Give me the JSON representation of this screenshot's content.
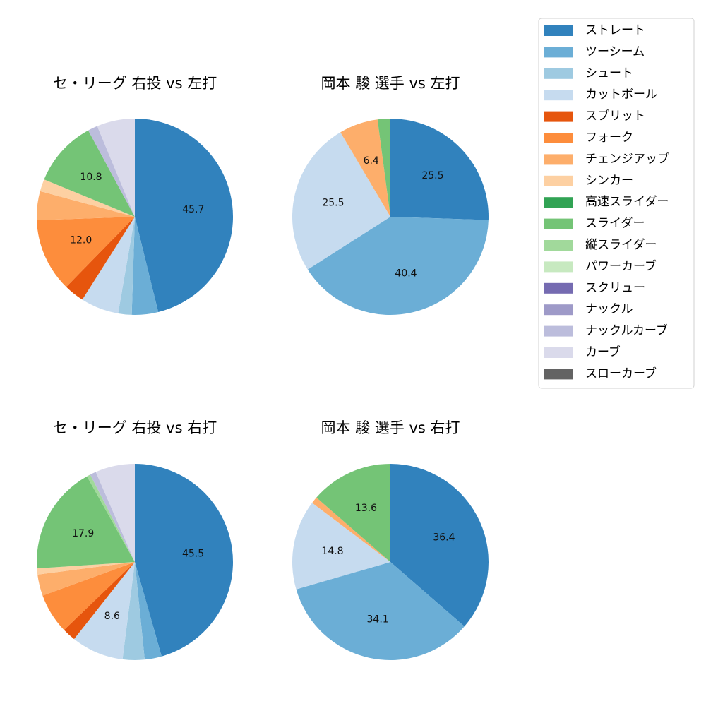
{
  "legend": [
    {
      "label": "ストレート",
      "color": "#3182bd"
    },
    {
      "label": "ツーシーム",
      "color": "#6baed6"
    },
    {
      "label": "シュート",
      "color": "#9ecae1"
    },
    {
      "label": "カットボール",
      "color": "#c6dbef"
    },
    {
      "label": "スプリット",
      "color": "#e6550d"
    },
    {
      "label": "フォーク",
      "color": "#fd8d3c"
    },
    {
      "label": "チェンジアップ",
      "color": "#fdae6b"
    },
    {
      "label": "シンカー",
      "color": "#fdd0a2"
    },
    {
      "label": "高速スライダー",
      "color": "#31a354"
    },
    {
      "label": "スライダー",
      "color": "#74c476"
    },
    {
      "label": "縦スライダー",
      "color": "#a1d99b"
    },
    {
      "label": "パワーカーブ",
      "color": "#c7e9c0"
    },
    {
      "label": "スクリュー",
      "color": "#756bb1"
    },
    {
      "label": "ナックル",
      "color": "#9e9ac8"
    },
    {
      "label": "ナックルカーブ",
      "color": "#bcbddc"
    },
    {
      "label": "カーブ",
      "color": "#dadaeb"
    },
    {
      "label": "スローカーブ",
      "color": "#636363"
    }
  ],
  "chart_data": [
    {
      "type": "pie",
      "title": "セ・リーグ 右投 vs 左打",
      "labels": [
        "ストレート",
        "ツーシーム",
        "シュート",
        "カットボール",
        "スプリット",
        "フォーク",
        "チェンジアップ",
        "シンカー",
        "スライダー",
        "ナックルカーブ",
        "カーブ"
      ],
      "values": [
        45.7,
        4.3,
        2.2,
        6.2,
        3.3,
        12.0,
        4.7,
        2.0,
        10.8,
        1.6,
        6.2
      ],
      "shown_labels": [
        "45.7",
        "",
        "",
        "",
        "",
        "12.0",
        "",
        "",
        "10.8",
        "",
        ""
      ]
    },
    {
      "type": "pie",
      "title": "岡本 駿 選手 vs 左打",
      "labels": [
        "ストレート",
        "ツーシーム",
        "カットボール",
        "チェンジアップ",
        "スライダー"
      ],
      "values": [
        25.5,
        40.4,
        25.5,
        6.4,
        2.1
      ],
      "shown_labels": [
        "25.5",
        "40.4",
        "25.5",
        "6.4",
        ""
      ]
    },
    {
      "type": "pie",
      "title": "セ・リーグ 右投 vs 右打",
      "labels": [
        "ストレート",
        "ツーシーム",
        "シュート",
        "カットボール",
        "スプリット",
        "フォーク",
        "チェンジアップ",
        "シンカー",
        "スライダー",
        "縦スライダー",
        "ナックルカーブ",
        "カーブ"
      ],
      "values": [
        45.5,
        2.8,
        3.6,
        8.6,
        2.2,
        6.6,
        3.5,
        1.0,
        17.9,
        0.6,
        1.0,
        6.5
      ],
      "shown_labels": [
        "45.5",
        "",
        "",
        "8.6",
        "",
        "",
        "",
        "",
        "17.9",
        "",
        "",
        ""
      ]
    },
    {
      "type": "pie",
      "title": "岡本 駿 選手 vs 右打",
      "labels": [
        "ストレート",
        "ツーシーム",
        "カットボール",
        "チェンジアップ",
        "スライダー"
      ],
      "values": [
        36.4,
        34.1,
        14.8,
        1.1,
        13.6
      ],
      "shown_labels": [
        "36.4",
        "34.1",
        "14.8",
        "",
        "13.6"
      ]
    }
  ]
}
